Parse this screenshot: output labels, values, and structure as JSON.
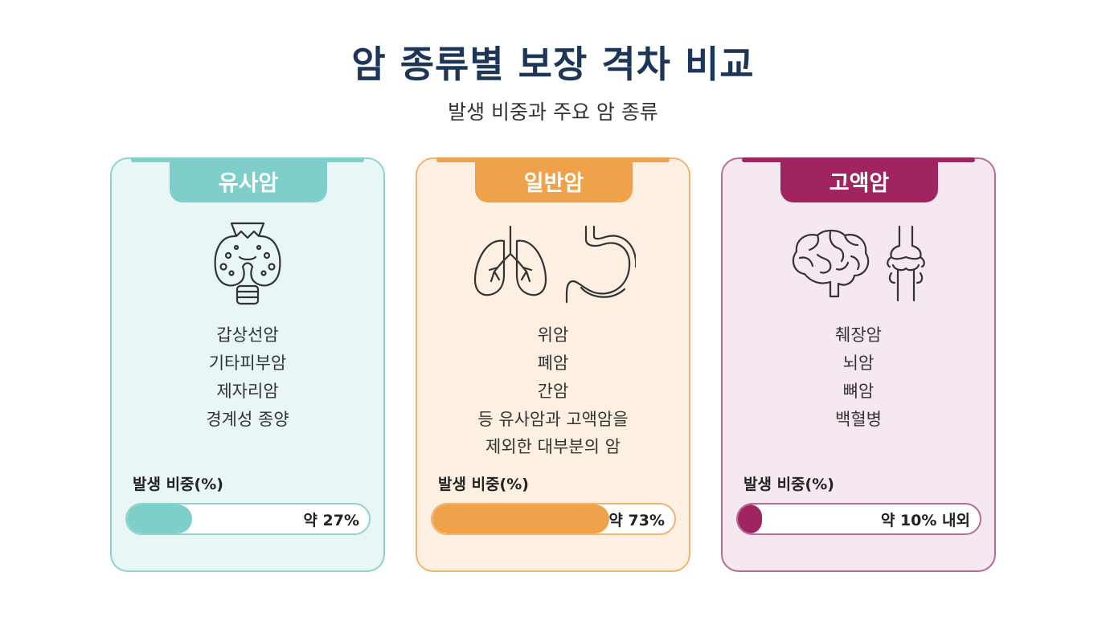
{
  "title": "암 종류별 보장 격차 비교",
  "subtitle": "발생 비중과 주요 암 종류",
  "cards": [
    {
      "name": "유사암",
      "accent": "#7ecfc9",
      "background": "#e8f6f5",
      "border": "#8fd3cd",
      "icons": [
        "thyroid-icon"
      ],
      "items": [
        "갑상선암",
        "기타피부암",
        "제자리암",
        "경계성 종양"
      ],
      "ratio_label": "발생 비중(%)",
      "ratio_text": "약 27%",
      "ratio_value": 27
    },
    {
      "name": "일반암",
      "accent": "#efa24a",
      "background": "#fdf0e2",
      "border": "#f2b36c",
      "icons": [
        "lungs-icon",
        "stomach-icon"
      ],
      "items": [
        "위암",
        "폐암",
        "간암",
        "등 유사암과 고액암을",
        "제외한 대부분의 암"
      ],
      "ratio_label": "발생 비중(%)",
      "ratio_text": "약 73%",
      "ratio_value": 73
    },
    {
      "name": "고액암",
      "accent": "#a0245f",
      "background": "#f5e8f0",
      "border": "#b86b94",
      "icons": [
        "brain-icon",
        "bone-joint-icon"
      ],
      "items": [
        "췌장암",
        "뇌암",
        "뼈암",
        "백혈병"
      ],
      "ratio_label": "발생 비중(%)",
      "ratio_text": "약 10% 내외",
      "ratio_value": 10
    }
  ]
}
